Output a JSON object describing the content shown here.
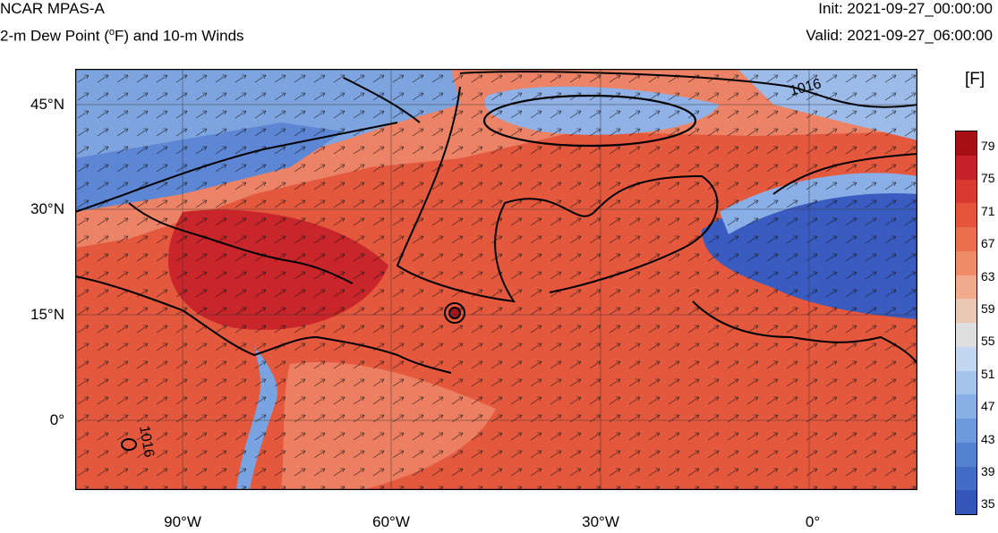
{
  "header": {
    "title": "NCAR MPAS-A",
    "subtitle": "2-m Dew Point (",
    "subtitle_deg": "o",
    "subtitle_rest": "F) and 10-m Winds",
    "init": "Init: 2021-09-27_00:00:00",
    "valid": "Valid: 2021-09-27_06:00:00"
  },
  "colorbar": {
    "units": "[F]",
    "labels": [
      "79",
      "75",
      "71",
      "67",
      "63",
      "59",
      "55",
      "51",
      "47",
      "43",
      "39",
      "35"
    ],
    "colors": [
      "#a50f15",
      "#c8202a",
      "#d9392f",
      "#e4533a",
      "#ec6f4d",
      "#f08b67",
      "#f0aa8c",
      "#ecc7b3",
      "#dedede",
      "#c3d6f0",
      "#a5c4ec",
      "#88b0e6",
      "#6c98dc",
      "#5482d2",
      "#426cc6",
      "#3456b8"
    ]
  },
  "map": {
    "lat_labels": [
      "45°N",
      "30°N",
      "15°N",
      "0°"
    ],
    "lon_labels": [
      "90°W",
      "60°W",
      "30°W",
      "0°"
    ],
    "isobar_labels": [
      "1016",
      "1016"
    ]
  }
}
